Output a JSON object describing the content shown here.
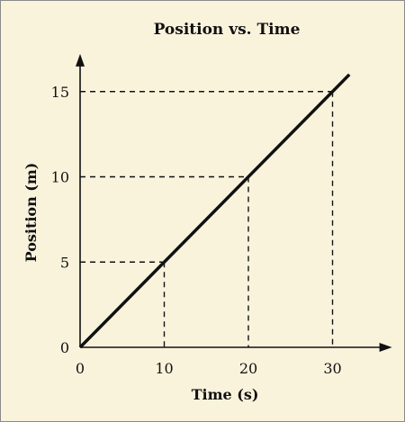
{
  "chart_data": {
    "type": "line",
    "title": "Position vs. Time",
    "xlabel": "Time (s)",
    "ylabel": "Position (m)",
    "xlim": [
      0,
      36
    ],
    "ylim": [
      0,
      17
    ],
    "xticks": [
      0,
      10,
      20,
      30
    ],
    "yticks": [
      0,
      5,
      10,
      15
    ],
    "grid": false,
    "series": [
      {
        "x": [
          0,
          32
        ],
        "y": [
          0,
          16
        ]
      }
    ],
    "reference_points": [
      {
        "x": 10,
        "y": 5
      },
      {
        "x": 20,
        "y": 10
      },
      {
        "x": 30,
        "y": 15
      }
    ],
    "colors": {
      "background": "#faf3dc",
      "line": "#111111",
      "axis": "#111111"
    }
  }
}
